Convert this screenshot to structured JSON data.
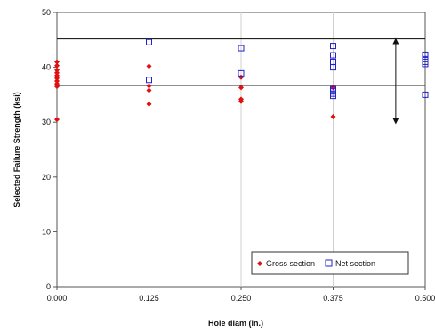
{
  "chart_data": {
    "type": "scatter",
    "xlabel": "Hole diam (in.)",
    "ylabel": "Selected Failure Strength (ksi)",
    "xlim": [
      0,
      0.5
    ],
    "ylim": [
      0,
      50
    ],
    "x_ticks": [
      "0.000",
      "0.125",
      "0.250",
      "0.375",
      "0.500"
    ],
    "y_ticks": [
      "0",
      "10",
      "20",
      "30",
      "40",
      "50"
    ],
    "grid": "vertical",
    "legend_position": "bottom-right",
    "series": [
      {
        "name": "Gross section",
        "marker": "filled-diamond",
        "color": "#e01010",
        "points": [
          [
            0.0,
            30.5
          ],
          [
            0.0,
            36.5
          ],
          [
            0.0,
            37.0
          ],
          [
            0.0,
            37.5
          ],
          [
            0.0,
            38.0
          ],
          [
            0.0,
            38.5
          ],
          [
            0.0,
            39.0
          ],
          [
            0.0,
            39.5
          ],
          [
            0.0,
            40.3
          ],
          [
            0.0,
            41.0
          ],
          [
            0.125,
            33.3
          ],
          [
            0.125,
            35.8
          ],
          [
            0.125,
            36.6
          ],
          [
            0.125,
            40.2
          ],
          [
            0.25,
            33.8
          ],
          [
            0.25,
            34.2
          ],
          [
            0.25,
            36.3
          ],
          [
            0.25,
            38.2
          ],
          [
            0.375,
            31.0
          ],
          [
            0.375,
            36.3
          ]
        ]
      },
      {
        "name": "Net section",
        "marker": "hollow-square",
        "color": "#2020cc",
        "points": [
          [
            0.125,
            37.7
          ],
          [
            0.125,
            44.6
          ],
          [
            0.25,
            38.9
          ],
          [
            0.25,
            43.5
          ],
          [
            0.375,
            34.8
          ],
          [
            0.375,
            35.2
          ],
          [
            0.375,
            35.6
          ],
          [
            0.375,
            36.0
          ],
          [
            0.375,
            40.0
          ],
          [
            0.375,
            41.0
          ],
          [
            0.375,
            42.2
          ],
          [
            0.375,
            43.9
          ],
          [
            0.5,
            35.0
          ],
          [
            0.5,
            40.6
          ],
          [
            0.5,
            41.0
          ],
          [
            0.5,
            41.5
          ],
          [
            0.5,
            42.3
          ]
        ]
      }
    ],
    "reference_lines": [
      {
        "y": 45.2,
        "color": "#222222"
      },
      {
        "y": 36.7,
        "color": "#222222"
      }
    ],
    "annotation_arrow": {
      "x": 0.46,
      "y_from": 44.8,
      "y_to": 30.2
    }
  }
}
